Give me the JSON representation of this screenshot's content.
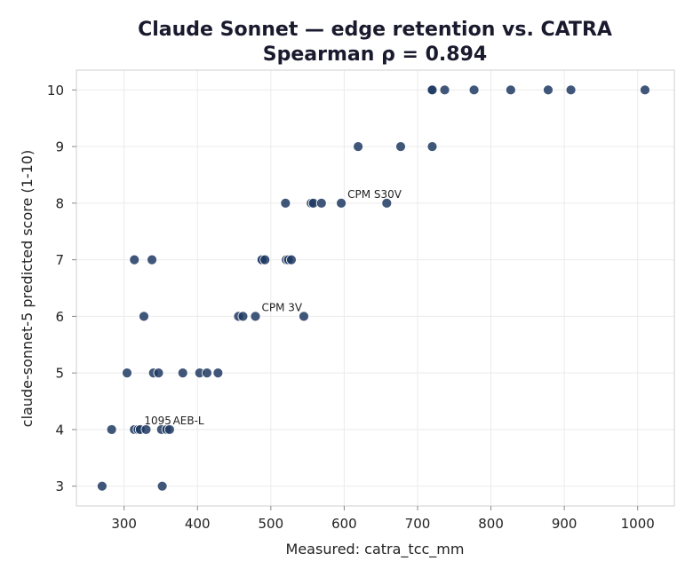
{
  "chart_data": {
    "type": "scatter",
    "title": [
      "Claude Sonnet — edge retention vs. CATRA",
      "Spearman ρ = 0.894"
    ],
    "xlabel": "Measured: catra_tcc_mm",
    "ylabel": "claude-sonnet-5 predicted score (1-10)",
    "xlim": [
      235,
      1050
    ],
    "ylim": [
      2.65,
      10.35
    ],
    "xticks": [
      300,
      400,
      500,
      600,
      700,
      800,
      900,
      1000
    ],
    "yticks": [
      3,
      4,
      5,
      6,
      7,
      8,
      9,
      10
    ],
    "grid": true,
    "point_color": "#1f3a63",
    "points": [
      {
        "x": 719,
        "y": 10
      },
      {
        "x": 720,
        "y": 10
      },
      {
        "x": 737,
        "y": 10
      },
      {
        "x": 777,
        "y": 10
      },
      {
        "x": 827,
        "y": 10
      },
      {
        "x": 878,
        "y": 10
      },
      {
        "x": 909,
        "y": 10
      },
      {
        "x": 1010,
        "y": 10
      },
      {
        "x": 619,
        "y": 9
      },
      {
        "x": 677,
        "y": 9
      },
      {
        "x": 720,
        "y": 9
      },
      {
        "x": 520,
        "y": 8
      },
      {
        "x": 555,
        "y": 8
      },
      {
        "x": 558,
        "y": 8
      },
      {
        "x": 569,
        "y": 8
      },
      {
        "x": 596,
        "y": 8
      },
      {
        "x": 658,
        "y": 8
      },
      {
        "x": 314,
        "y": 7
      },
      {
        "x": 338,
        "y": 7
      },
      {
        "x": 487,
        "y": 7
      },
      {
        "x": 488,
        "y": 7
      },
      {
        "x": 492,
        "y": 7
      },
      {
        "x": 521,
        "y": 7
      },
      {
        "x": 524,
        "y": 7
      },
      {
        "x": 528,
        "y": 7
      },
      {
        "x": 327,
        "y": 6
      },
      {
        "x": 456,
        "y": 6
      },
      {
        "x": 462,
        "y": 6
      },
      {
        "x": 479,
        "y": 6
      },
      {
        "x": 545,
        "y": 6
      },
      {
        "x": 304,
        "y": 5
      },
      {
        "x": 340,
        "y": 5
      },
      {
        "x": 347,
        "y": 5
      },
      {
        "x": 380,
        "y": 5
      },
      {
        "x": 403,
        "y": 5
      },
      {
        "x": 413,
        "y": 5
      },
      {
        "x": 428,
        "y": 5
      },
      {
        "x": 283,
        "y": 4
      },
      {
        "x": 314,
        "y": 4
      },
      {
        "x": 319,
        "y": 4
      },
      {
        "x": 322,
        "y": 4
      },
      {
        "x": 330,
        "y": 4
      },
      {
        "x": 351,
        "y": 4
      },
      {
        "x": 358,
        "y": 4
      },
      {
        "x": 362,
        "y": 4
      },
      {
        "x": 270,
        "y": 3
      },
      {
        "x": 352,
        "y": 3
      }
    ],
    "annotations": [
      {
        "text": "CPM S30V",
        "x": 596,
        "y": 8
      },
      {
        "text": "CPM 3V",
        "x": 479,
        "y": 6
      },
      {
        "text": "1095",
        "x": 319,
        "y": 4
      },
      {
        "text": "AEB-L",
        "x": 358,
        "y": 4
      }
    ]
  }
}
